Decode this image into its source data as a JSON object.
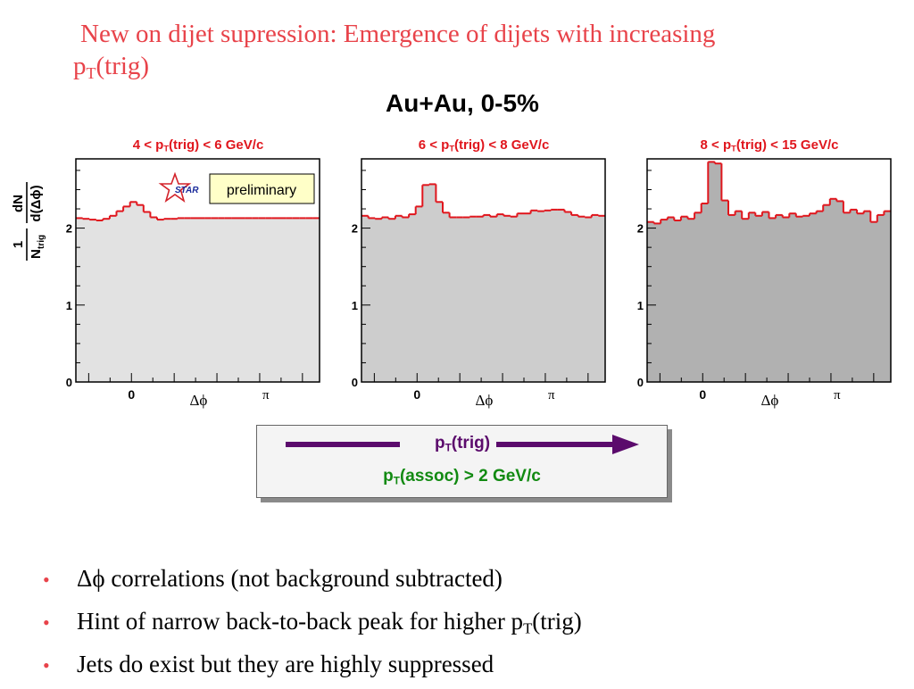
{
  "slide": {
    "title_line1": "New on dijet supression: Emergence of dijets with increasing",
    "title_line2_p": "p",
    "title_line2_sub": "T",
    "title_line2_rest": "(trig)",
    "subtitle": "Au+Au, 0-5%"
  },
  "y_label": {
    "frac_num": "1",
    "frac_den_main": "N",
    "frac_den_sub": "trig",
    "deriv_num": "dN",
    "deriv_den": "d(Δϕ)"
  },
  "preliminary_label": "preliminary",
  "star_logo_text": "STAR",
  "legend": {
    "pt_trig_p": "p",
    "pt_trig_sub": "T",
    "pt_trig_rest": "(trig)",
    "pt_assoc_p": "p",
    "pt_assoc_sub": "T",
    "pt_assoc_rest": "(assoc) > 2 GeV/c",
    "arrow_color": "#5b0b6c",
    "assoc_color": "#128a12"
  },
  "bullets": [
    {
      "pre": "Δϕ correlations (not background subtracted)",
      "sub": "",
      "post": ""
    },
    {
      "pre": "Hint of narrow back-to-back peak for higher p",
      "sub": "T",
      "post": "(trig)"
    },
    {
      "pre": "Jets do exist but they are highly suppressed",
      "sub": "",
      "post": ""
    }
  ],
  "colors": {
    "title": "#e8434a",
    "histogram_line": "#e0161d",
    "bullet": "#e8434a"
  },
  "chart_data": [
    {
      "type": "area",
      "title_pre": "4 < p",
      "title_sub": "T",
      "title_post": "(trig) < 6 GeV/c",
      "xlabel": "Δϕ",
      "x_ticks": [
        {
          "value": 0,
          "label": "0"
        },
        {
          "value": 3.1416,
          "label": "π"
        }
      ],
      "x_range": [
        -1.3,
        4.4
      ],
      "y_ticks": [
        0,
        1,
        2
      ],
      "ylim": [
        0,
        2.9
      ],
      "fill": "#e2e2e2",
      "values": [
        2.13,
        2.12,
        2.11,
        2.1,
        2.12,
        2.16,
        2.22,
        2.28,
        2.34,
        2.3,
        2.21,
        2.14,
        2.11,
        2.12,
        2.12,
        2.13,
        2.13,
        2.13,
        2.13,
        2.13,
        2.13,
        2.13,
        2.13,
        2.13,
        2.13,
        2.13,
        2.13,
        2.13,
        2.13,
        2.13,
        2.13,
        2.13,
        2.13,
        2.13,
        2.13,
        2.13
      ]
    },
    {
      "type": "area",
      "title_pre": "6 < p",
      "title_sub": "T",
      "title_post": "(trig) < 8 GeV/c",
      "xlabel": "Δϕ",
      "x_ticks": [
        {
          "value": 0,
          "label": "0"
        },
        {
          "value": 3.1416,
          "label": "π"
        }
      ],
      "x_range": [
        -1.3,
        4.4
      ],
      "y_ticks": [
        0,
        1,
        2
      ],
      "ylim": [
        0,
        2.9
      ],
      "fill": "#cdcdcd",
      "values": [
        2.16,
        2.13,
        2.12,
        2.14,
        2.12,
        2.16,
        2.14,
        2.18,
        2.28,
        2.56,
        2.57,
        2.34,
        2.2,
        2.14,
        2.14,
        2.14,
        2.15,
        2.15,
        2.17,
        2.15,
        2.18,
        2.16,
        2.15,
        2.19,
        2.19,
        2.23,
        2.22,
        2.23,
        2.24,
        2.24,
        2.21,
        2.17,
        2.15,
        2.14,
        2.17,
        2.16
      ]
    },
    {
      "type": "area",
      "title_pre": "8 < p",
      "title_sub": "T",
      "title_post": "(trig) < 15 GeV/c",
      "xlabel": "Δϕ",
      "x_ticks": [
        {
          "value": 0,
          "label": "0"
        },
        {
          "value": 3.1416,
          "label": "π"
        }
      ],
      "x_range": [
        -1.3,
        4.4
      ],
      "y_ticks": [
        0,
        1,
        2
      ],
      "ylim": [
        0,
        2.9
      ],
      "fill": "#b1b1b1",
      "values": [
        2.08,
        2.06,
        2.11,
        2.14,
        2.1,
        2.15,
        2.12,
        2.2,
        2.32,
        2.86,
        2.84,
        2.36,
        2.17,
        2.22,
        2.12,
        2.2,
        2.16,
        2.21,
        2.13,
        2.17,
        2.14,
        2.19,
        2.15,
        2.16,
        2.19,
        2.22,
        2.3,
        2.38,
        2.35,
        2.2,
        2.24,
        2.19,
        2.22,
        2.08,
        2.17,
        2.22
      ]
    }
  ]
}
